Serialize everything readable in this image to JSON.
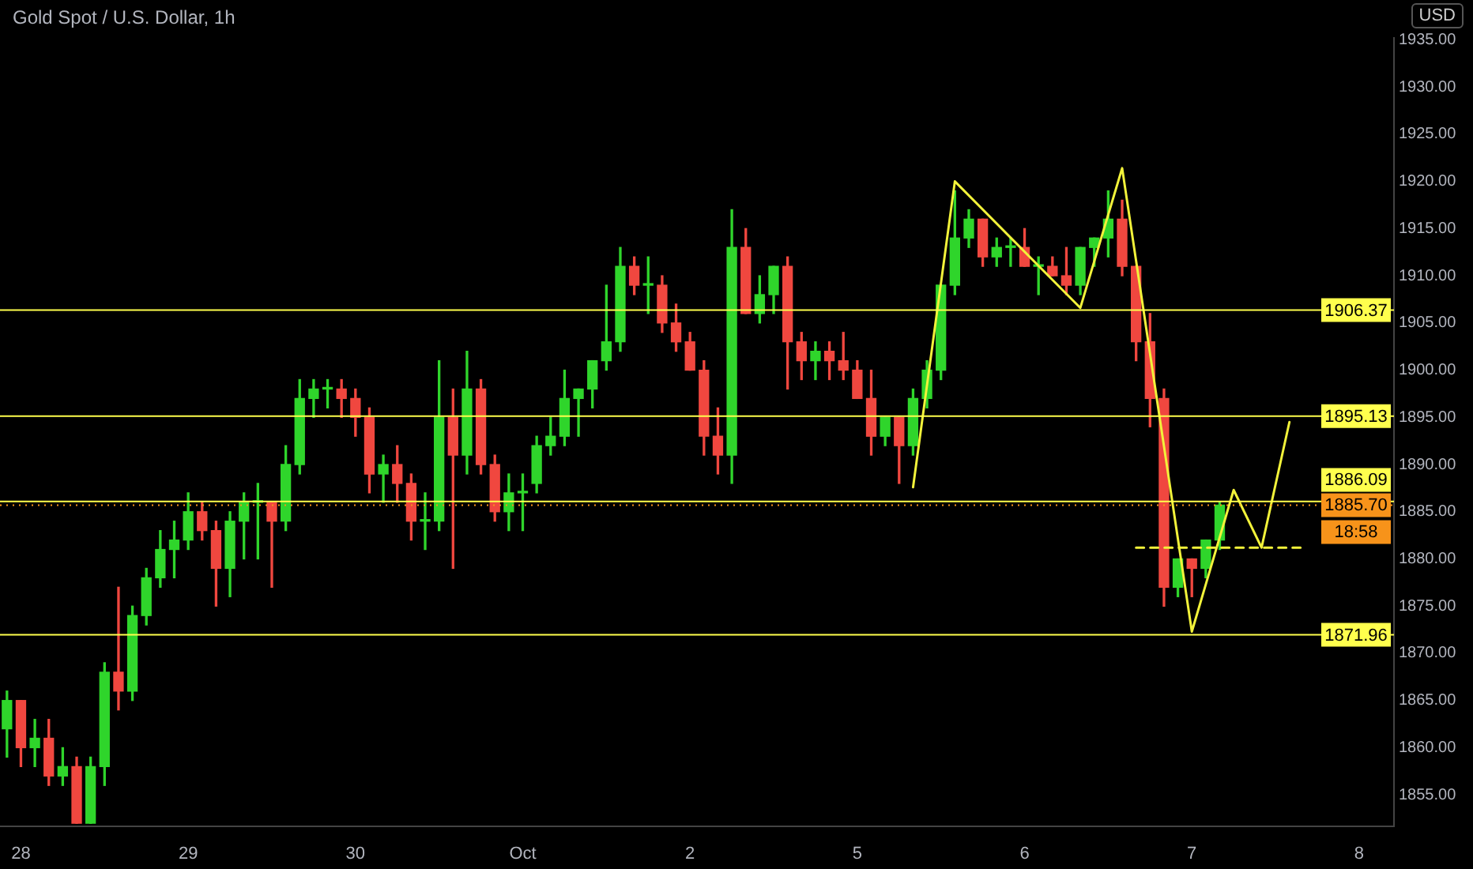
{
  "chart_data": {
    "type": "candlestick",
    "title": "Gold Spot / U.S. Dollar, 1h",
    "ylabel": "USD",
    "categories": [
      null,
      "28",
      null,
      null,
      null,
      null,
      null,
      null,
      null,
      null,
      null,
      null,
      null,
      "29",
      null,
      null,
      null,
      null,
      null,
      null,
      null,
      null,
      null,
      null,
      null,
      "30",
      null,
      null,
      null,
      null,
      null,
      null,
      null,
      null,
      null,
      null,
      null,
      "Oct",
      null,
      null,
      null,
      null,
      null,
      null,
      null,
      null,
      null,
      null,
      null,
      "2",
      null,
      null,
      null,
      null,
      null,
      null,
      null,
      null,
      null,
      null,
      null,
      "5",
      null,
      null,
      null,
      null,
      null,
      null,
      null,
      null,
      null,
      null,
      null,
      "6",
      null,
      null,
      null,
      null,
      null,
      null,
      null,
      null,
      null,
      null,
      null,
      "7",
      null,
      null,
      null,
      null,
      null,
      null,
      null,
      null,
      null,
      null,
      null,
      "8",
      null,
      null
    ],
    "ohlc": [
      [
        1862,
        1866,
        1859,
        1865
      ],
      [
        1865,
        1865,
        1858,
        1860
      ],
      [
        1860,
        1863,
        1858,
        1861
      ],
      [
        1861,
        1863,
        1856,
        1857
      ],
      [
        1857,
        1860,
        1856,
        1858
      ],
      [
        1858,
        1859,
        1852,
        1852
      ],
      [
        1852,
        1859,
        1852,
        1858
      ],
      [
        1858,
        1869,
        1856,
        1868
      ],
      [
        1868,
        1877,
        1864,
        1866
      ],
      [
        1866,
        1875,
        1865,
        1874
      ],
      [
        1874,
        1879,
        1873,
        1878
      ],
      [
        1878,
        1883,
        1877,
        1881
      ],
      [
        1881,
        1884,
        1878,
        1882
      ],
      [
        1882,
        1887,
        1881,
        1885
      ],
      [
        1885,
        1886,
        1882,
        1883
      ],
      [
        1883,
        1884,
        1875,
        1879
      ],
      [
        1879,
        1885,
        1876,
        1884
      ],
      [
        1884,
        1887,
        1880,
        1886
      ],
      [
        1886,
        1888,
        1880,
        1886
      ],
      [
        1886,
        1886,
        1877,
        1884
      ],
      [
        1884,
        1892,
        1883,
        1890
      ],
      [
        1890,
        1899,
        1889,
        1897
      ],
      [
        1897,
        1899,
        1895,
        1898
      ],
      [
        1898,
        1899,
        1896,
        1898
      ],
      [
        1898,
        1899,
        1895,
        1897
      ],
      [
        1897,
        1898,
        1893,
        1895
      ],
      [
        1895,
        1896,
        1887,
        1889
      ],
      [
        1889,
        1891,
        1886,
        1890
      ],
      [
        1890,
        1892,
        1886,
        1888
      ],
      [
        1888,
        1889,
        1882,
        1884
      ],
      [
        1884,
        1887,
        1881,
        1884
      ],
      [
        1884,
        1901,
        1883,
        1895
      ],
      [
        1895,
        1898,
        1879,
        1891
      ],
      [
        1891,
        1902,
        1889,
        1898
      ],
      [
        1898,
        1899,
        1889,
        1890
      ],
      [
        1890,
        1891,
        1884,
        1885
      ],
      [
        1885,
        1889,
        1883,
        1887
      ],
      [
        1887,
        1889,
        1883,
        1887
      ],
      [
        1888,
        1893,
        1887,
        1892
      ],
      [
        1892,
        1895,
        1891,
        1893
      ],
      [
        1893,
        1900,
        1892,
        1897
      ],
      [
        1897,
        1898,
        1893,
        1898
      ],
      [
        1898,
        1901,
        1896,
        1901
      ],
      [
        1901,
        1909,
        1900,
        1903
      ],
      [
        1903,
        1913,
        1902,
        1911
      ],
      [
        1911,
        1912,
        1908,
        1909
      ],
      [
        1909,
        1912,
        1906,
        1909
      ],
      [
        1909,
        1910,
        1904,
        1905
      ],
      [
        1905,
        1907,
        1902,
        1903
      ],
      [
        1903,
        1904,
        1900,
        1900
      ],
      [
        1900,
        1901,
        1891,
        1893
      ],
      [
        1893,
        1896,
        1889,
        1891
      ],
      [
        1891,
        1917,
        1888,
        1913
      ],
      [
        1913,
        1915,
        1906,
        1906
      ],
      [
        1906,
        1910,
        1905,
        1908
      ],
      [
        1908,
        1911,
        1906,
        1911
      ],
      [
        1911,
        1912,
        1898,
        1903
      ],
      [
        1903,
        1904,
        1899,
        1901
      ],
      [
        1901,
        1903,
        1899,
        1902
      ],
      [
        1902,
        1903,
        1899,
        1901
      ],
      [
        1901,
        1904,
        1899,
        1900
      ],
      [
        1900,
        1901,
        1897,
        1897
      ],
      [
        1897,
        1900,
        1891,
        1893
      ],
      [
        1893,
        1895,
        1892,
        1895
      ],
      [
        1895,
        1895,
        1888,
        1892
      ],
      [
        1892,
        1898,
        1891,
        1897
      ],
      [
        1897,
        1901,
        1896,
        1900
      ],
      [
        1900,
        1909,
        1899,
        1909
      ],
      [
        1909,
        1919,
        1908,
        1914
      ],
      [
        1914,
        1917,
        1913,
        1916
      ],
      [
        1916,
        1916,
        1911,
        1912
      ],
      [
        1912,
        1914,
        1911,
        1913
      ],
      [
        1913,
        1914,
        1911,
        1913
      ],
      [
        1913,
        1915,
        1911,
        1911
      ],
      [
        1911,
        1912,
        1908,
        1911
      ],
      [
        1911,
        1912,
        1910,
        1910
      ],
      [
        1910,
        1913,
        1908,
        1909
      ],
      [
        1909,
        1913,
        1908,
        1913
      ],
      [
        1913,
        1914,
        1911,
        1914
      ],
      [
        1914,
        1919,
        1912,
        1916
      ],
      [
        1916,
        1918,
        1910,
        1911
      ],
      [
        1911,
        1911,
        1901,
        1903
      ],
      [
        1903,
        1906,
        1894,
        1897
      ],
      [
        1897,
        1898,
        1875,
        1877
      ],
      [
        1877,
        1880,
        1876,
        1880
      ],
      [
        1880,
        1880,
        1876,
        1879
      ],
      [
        1879,
        1882,
        1878,
        1882
      ],
      [
        1882,
        1886,
        1881,
        1885.7
      ],
      null,
      null,
      null,
      null,
      null,
      null,
      null,
      null,
      null,
      null,
      null,
      null
    ],
    "series": [
      {
        "type": "line",
        "color": "#f2f23a",
        "values": [
          null,
          null,
          null,
          null,
          null,
          null,
          null,
          null,
          null,
          null,
          null,
          null,
          null,
          null,
          null,
          null,
          null,
          null,
          null,
          null,
          null,
          null,
          null,
          null,
          null,
          null,
          null,
          null,
          null,
          null,
          null,
          null,
          null,
          null,
          null,
          null,
          null,
          null,
          null,
          null,
          null,
          null,
          null,
          null,
          null,
          null,
          null,
          null,
          null,
          null,
          null,
          null,
          null,
          null,
          null,
          null,
          null,
          null,
          null,
          null,
          null,
          null,
          null,
          null,
          null,
          1887.6,
          null,
          null,
          1920,
          null,
          null,
          null,
          null,
          null,
          null,
          null,
          null,
          1906.6,
          null,
          null,
          1921.4,
          null,
          null,
          null,
          null,
          1872.3,
          null,
          null,
          1887.3,
          null,
          1881.2,
          null,
          1894.5,
          null,
          null,
          null,
          null,
          null,
          null,
          null
        ]
      },
      {
        "type": "line",
        "color": "#f2f23a",
        "line_style": "dashed",
        "values": [
          null,
          null,
          null,
          null,
          null,
          null,
          null,
          null,
          null,
          null,
          null,
          null,
          null,
          null,
          null,
          null,
          null,
          null,
          null,
          null,
          null,
          null,
          null,
          null,
          null,
          null,
          null,
          null,
          null,
          null,
          null,
          null,
          null,
          null,
          null,
          null,
          null,
          null,
          null,
          null,
          null,
          null,
          null,
          null,
          null,
          null,
          null,
          null,
          null,
          null,
          null,
          null,
          null,
          null,
          null,
          null,
          null,
          null,
          null,
          null,
          null,
          null,
          null,
          null,
          null,
          null,
          null,
          null,
          null,
          null,
          null,
          null,
          null,
          null,
          null,
          null,
          null,
          null,
          null,
          null,
          null,
          1881.2,
          null,
          null,
          null,
          null,
          null,
          null,
          null,
          null,
          null,
          null,
          null,
          1881.2,
          null,
          null,
          null,
          null,
          null,
          null
        ]
      }
    ],
    "ref_lines": [
      {
        "axis": "y",
        "value": 1906.37,
        "label": "1906.37",
        "color": "#ffff4d"
      },
      {
        "axis": "y",
        "value": 1895.13,
        "label": "1895.13",
        "color": "#ffff4d"
      },
      {
        "axis": "y",
        "value": 1886.09,
        "label": "1886.09",
        "color": "#ffff4d"
      },
      {
        "axis": "y",
        "value": 1885.7,
        "label": "1885.70",
        "color": "#f7931a",
        "line_style": "dotted"
      },
      {
        "axis": "y",
        "value": 1871.96,
        "label": "1871.96",
        "color": "#ffff4d"
      }
    ],
    "annotations": [
      "18:58"
    ],
    "ylim": [
      1851.7,
      1935.2
    ],
    "yticks": [
      {
        "value": 1855,
        "label": "1855.00"
      },
      {
        "value": 1860,
        "label": "1860.00"
      },
      {
        "value": 1865,
        "label": "1865.00"
      },
      {
        "value": 1870,
        "label": "1870.00"
      },
      {
        "value": 1875,
        "label": "1875.00"
      },
      {
        "value": 1880,
        "label": "1880.00"
      },
      {
        "value": 1885,
        "label": "1885.00"
      },
      {
        "value": 1890,
        "label": "1890.00"
      },
      {
        "value": 1895,
        "label": "1895.00"
      },
      {
        "value": 1900,
        "label": "1900.00"
      },
      {
        "value": 1905,
        "label": "1905.00"
      },
      {
        "value": 1910,
        "label": "1910.00"
      },
      {
        "value": 1915,
        "label": "1915.00"
      },
      {
        "value": 1920,
        "label": "1920.00"
      },
      {
        "value": 1925,
        "label": "1925.00"
      },
      {
        "value": 1930,
        "label": "1930.00"
      },
      {
        "value": 1935,
        "label": "1935.00"
      }
    ]
  }
}
